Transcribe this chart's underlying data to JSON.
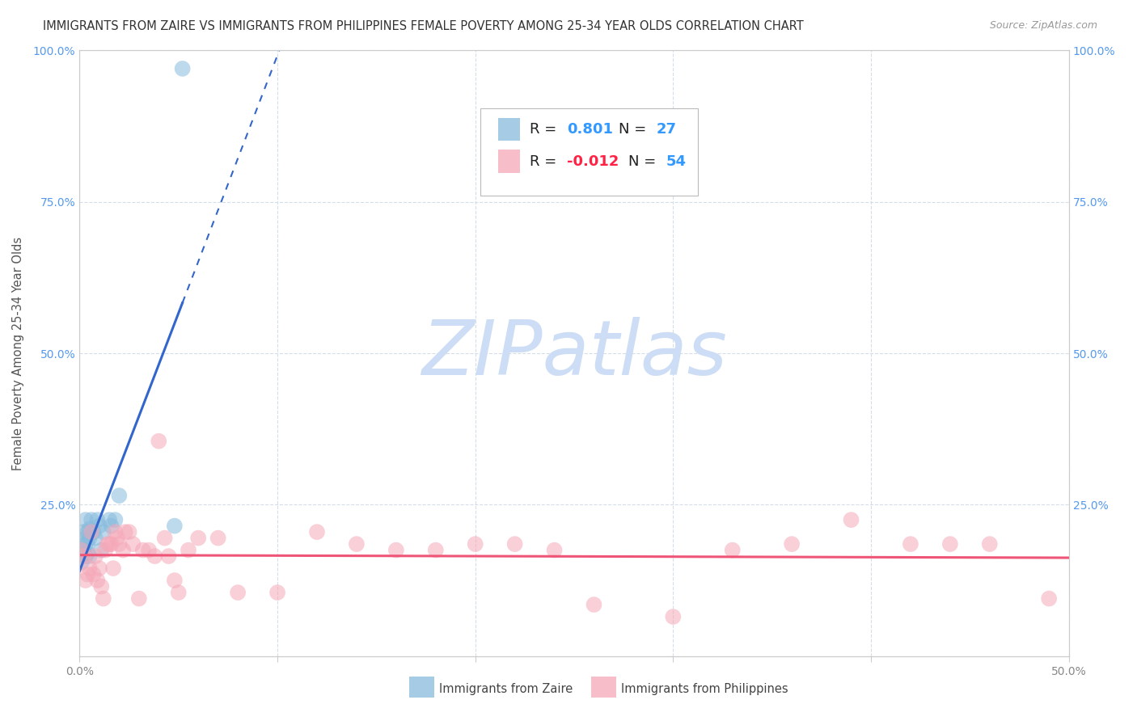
{
  "title": "IMMIGRANTS FROM ZAIRE VS IMMIGRANTS FROM PHILIPPINES FEMALE POVERTY AMONG 25-34 YEAR OLDS CORRELATION CHART",
  "source": "Source: ZipAtlas.com",
  "ylabel": "Female Poverty Among 25-34 Year Olds",
  "xlim": [
    0.0,
    0.5
  ],
  "ylim": [
    0.0,
    1.0
  ],
  "xticks_major": [
    0.0,
    0.1,
    0.2,
    0.3,
    0.4,
    0.5
  ],
  "yticks_major": [
    0.0,
    0.25,
    0.5,
    0.75,
    1.0
  ],
  "xtick_labels": [
    "0.0%",
    "",
    "",
    "",
    "",
    "50.0%"
  ],
  "ytick_labels": [
    "",
    "25.0%",
    "50.0%",
    "75.0%",
    "100.0%"
  ],
  "watermark": "ZIPatlas",
  "watermark_color": "#ccddf5",
  "zaire_color": "#88bbdd",
  "philippines_color": "#f5a8b8",
  "zaire_line_color": "#3366cc",
  "philippines_line_color": "#ee5577",
  "background_color": "#ffffff",
  "grid_color": "#d5dde8",
  "axis_color": "#cccccc",
  "tick_color_blue": "#5599ee",
  "zaire_R": "0.801",
  "zaire_N": "27",
  "philippines_R": "-0.012",
  "philippines_N": "54",
  "zaire_x": [
    0.001,
    0.002,
    0.002,
    0.003,
    0.003,
    0.003,
    0.003,
    0.004,
    0.004,
    0.004,
    0.005,
    0.005,
    0.005,
    0.006,
    0.006,
    0.007,
    0.008,
    0.009,
    0.01,
    0.011,
    0.012,
    0.015,
    0.016,
    0.018,
    0.02,
    0.048,
    0.052
  ],
  "zaire_y": [
    0.155,
    0.205,
    0.175,
    0.185,
    0.195,
    0.225,
    0.165,
    0.205,
    0.185,
    0.17,
    0.21,
    0.195,
    0.165,
    0.225,
    0.205,
    0.205,
    0.195,
    0.225,
    0.215,
    0.175,
    0.205,
    0.225,
    0.215,
    0.225,
    0.265,
    0.215,
    0.97
  ],
  "philippines_x": [
    0.001,
    0.002,
    0.003,
    0.004,
    0.005,
    0.006,
    0.007,
    0.008,
    0.009,
    0.01,
    0.011,
    0.012,
    0.013,
    0.014,
    0.015,
    0.016,
    0.017,
    0.018,
    0.019,
    0.02,
    0.022,
    0.023,
    0.025,
    0.027,
    0.03,
    0.032,
    0.035,
    0.038,
    0.04,
    0.043,
    0.045,
    0.048,
    0.05,
    0.055,
    0.06,
    0.07,
    0.08,
    0.1,
    0.12,
    0.14,
    0.16,
    0.18,
    0.2,
    0.22,
    0.24,
    0.26,
    0.3,
    0.33,
    0.36,
    0.39,
    0.42,
    0.44,
    0.46,
    0.49
  ],
  "philippines_y": [
    0.175,
    0.165,
    0.125,
    0.135,
    0.145,
    0.205,
    0.135,
    0.165,
    0.125,
    0.145,
    0.115,
    0.095,
    0.175,
    0.185,
    0.185,
    0.185,
    0.145,
    0.205,
    0.195,
    0.185,
    0.175,
    0.205,
    0.205,
    0.185,
    0.095,
    0.175,
    0.175,
    0.165,
    0.355,
    0.195,
    0.165,
    0.125,
    0.105,
    0.175,
    0.195,
    0.195,
    0.105,
    0.105,
    0.205,
    0.185,
    0.175,
    0.175,
    0.185,
    0.185,
    0.175,
    0.085,
    0.065,
    0.175,
    0.185,
    0.225,
    0.185,
    0.185,
    0.185,
    0.095
  ],
  "title_fontsize": 10.5,
  "tick_fontsize": 10,
  "legend_fontsize": 13,
  "ylabel_fontsize": 10.5,
  "source_fontsize": 9
}
